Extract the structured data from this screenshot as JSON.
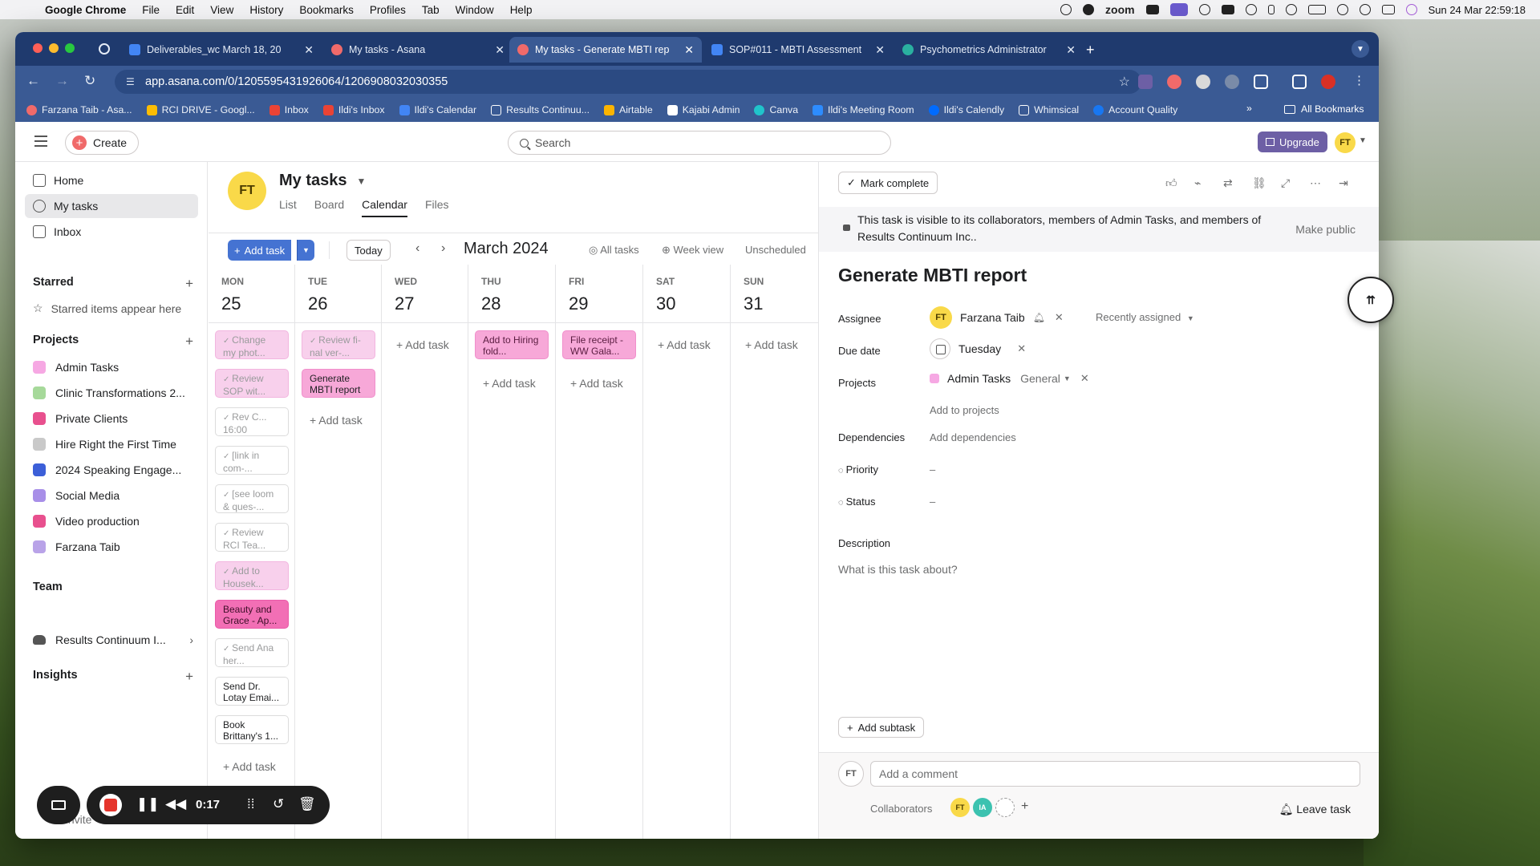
{
  "menubar": {
    "app": "Google Chrome",
    "items": [
      "File",
      "Edit",
      "View",
      "History",
      "Bookmarks",
      "Profiles",
      "Tab",
      "Window",
      "Help"
    ],
    "zoom_label": "zoom",
    "datetime": "Sun 24 Mar  22:59:18"
  },
  "browser": {
    "tabs": [
      {
        "title": "Deliverables_wc March 18, 20",
        "fav_color": "#4285f4"
      },
      {
        "title": "My tasks - Asana",
        "fav_color": "#f06a6a"
      },
      {
        "title": "My tasks - Generate MBTI rep",
        "fav_color": "#f06a6a"
      },
      {
        "title": "SOP#011 - MBTI Assessment",
        "fav_color": "#4285f4"
      },
      {
        "title": "Psychometrics Administrator",
        "fav_color": "#2ab0a0"
      }
    ],
    "url": "app.asana.com/0/1205595431926064/1206908032030355",
    "bookmarks": [
      "Farzana Taib - Asa...",
      "RCI DRIVE - Googl...",
      "Inbox",
      "Ildi's Inbox",
      "Ildi's Calendar",
      "Results Continuu...",
      "Airtable",
      "Kajabi Admin",
      "Canva",
      "Ildi's Meeting Room",
      "Ildi's Calendly",
      "Whimsical",
      "Account Quality"
    ],
    "bookmarks_more": "»",
    "all_bookmarks": "All Bookmarks"
  },
  "topbar": {
    "create_label": "Create",
    "search_placeholder": "Search",
    "upgrade_label": "Upgrade",
    "user_initials": "FT"
  },
  "sidebar": {
    "nav": [
      "Home",
      "My tasks",
      "Inbox"
    ],
    "starred_heading": "Starred",
    "starred_empty": "Starred items appear here",
    "projects_heading": "Projects",
    "projects": [
      {
        "name": "Admin Tasks",
        "color": "#f6a8e3"
      },
      {
        "name": "Clinic Transformations 2...",
        "color": "#a6d99a"
      },
      {
        "name": "Private Clients",
        "color": "#e8508e"
      },
      {
        "name": "Hire Right the First Time",
        "color": "#c9c9c9"
      },
      {
        "name": "2024 Speaking Engage...",
        "color": "#3c5fd8"
      },
      {
        "name": "Social Media",
        "color": "#a88fe8"
      },
      {
        "name": "Video production",
        "color": "#e8508e"
      },
      {
        "name": "Farzana Taib",
        "color": "#b9a3e8"
      }
    ],
    "team_heading": "Team",
    "team_name": "Results Continuum I...",
    "insights_heading": "Insights",
    "invite": "Invite"
  },
  "mytasks": {
    "initials": "FT",
    "title": "My tasks",
    "tabs": [
      "List",
      "Board",
      "Calendar",
      "Files"
    ],
    "add_task": "Add task",
    "today": "Today",
    "month": "March 2024",
    "all_tasks": "All tasks",
    "week_view": "Week view",
    "unscheduled": "Unscheduled",
    "add_task_inline": "+ Add task",
    "days": [
      {
        "name": "MON",
        "num": "25"
      },
      {
        "name": "TUE",
        "num": "26"
      },
      {
        "name": "WED",
        "num": "27"
      },
      {
        "name": "THU",
        "num": "28"
      },
      {
        "name": "FRI",
        "num": "29"
      },
      {
        "name": "SAT",
        "num": "30"
      },
      {
        "name": "SUN",
        "num": "31"
      }
    ],
    "mon_cards": [
      "Change my phot...",
      "Review SOP wit...",
      "Rev C... 16:00",
      "[link in com-...",
      "[see loom & ques-...",
      "Review RCI Tea...",
      "Add to Housek...",
      "Beauty and Grace - Ap...",
      "Send Ana her...",
      "Send Dr. Lotay Emai...",
      "Book Brittany's 1..."
    ],
    "tue_cards": [
      "Review fi-nal ver-...",
      "Generate MBTI report"
    ],
    "thu_cards": [
      "Add to Hiring fold..."
    ],
    "fri_cards": [
      "File receipt - WW Gala..."
    ]
  },
  "detail": {
    "mark_complete": "Mark complete",
    "notice": "This task is visible to its collaborators, members of Admin Tasks, and members of Results Continuum Inc..",
    "make_public": "Make public",
    "title": "Generate MBTI report",
    "assignee_label": "Assignee",
    "assignee_initials": "FT",
    "assignee_name": "Farzana Taib",
    "recently_assigned": "Recently assigned",
    "due_label": "Due date",
    "due_value": "Tuesday",
    "projects_label": "Projects",
    "project_name": "Admin Tasks",
    "project_section": "General",
    "add_to_projects": "Add to projects",
    "dependencies_label": "Dependencies",
    "add_dependencies": "Add dependencies",
    "priority_label": "Priority",
    "priority_value": "–",
    "status_label": "Status",
    "status_value": "–",
    "description_label": "Description",
    "description_placeholder": "What is this task about?",
    "add_subtask": "Add subtask",
    "comment_placeholder": "Add a comment",
    "collaborators_label": "Collaborators",
    "collab_initials": [
      "FT",
      "IA"
    ],
    "leave_task": "Leave task"
  },
  "recorder": {
    "time": "0:17"
  }
}
